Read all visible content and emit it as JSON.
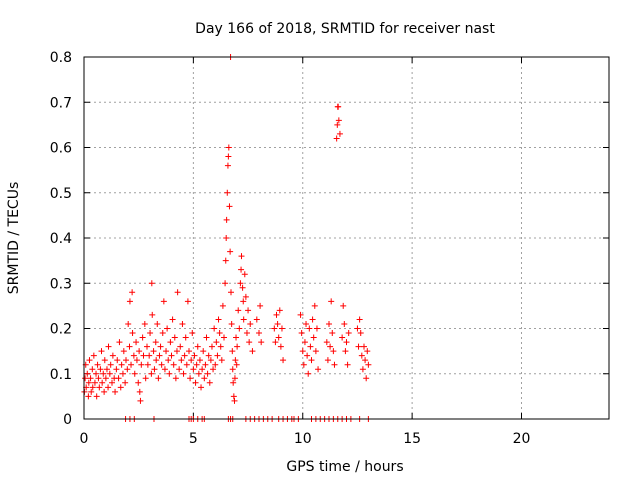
{
  "chart_data": {
    "type": "scatter",
    "title": "Day 166 of 2018, SRMTID for receiver nast",
    "xlabel": "GPS time / hours",
    "ylabel": "SRMTID / TECUs",
    "xlim": [
      0,
      24
    ],
    "ylim": [
      0,
      0.8
    ],
    "xticks": [
      0,
      5,
      10,
      15,
      20
    ],
    "yticks": [
      0,
      0.1,
      0.2,
      0.3,
      0.4,
      0.5,
      0.6,
      0.7,
      0.8
    ],
    "grid": true,
    "marker": "+",
    "color": "#ff0000",
    "series": [
      {
        "name": "SRMTID",
        "points": [
          [
            0.02,
            0.06
          ],
          [
            0.05,
            0.09
          ],
          [
            0.08,
            0.12
          ],
          [
            0.1,
            0.07
          ],
          [
            0.15,
            0.1
          ],
          [
            0.2,
            0.05
          ],
          [
            0.22,
            0.08
          ],
          [
            0.25,
            0.13
          ],
          [
            0.3,
            0.09
          ],
          [
            0.33,
            0.06
          ],
          [
            0.38,
            0.11
          ],
          [
            0.4,
            0.07
          ],
          [
            0.45,
            0.14
          ],
          [
            0.5,
            0.08
          ],
          [
            0.55,
            0.1
          ],
          [
            0.58,
            0.05
          ],
          [
            0.62,
            0.12
          ],
          [
            0.66,
            0.09
          ],
          [
            0.7,
            0.07
          ],
          [
            0.75,
            0.11
          ],
          [
            0.8,
            0.15
          ],
          [
            0.83,
            0.08
          ],
          [
            0.88,
            0.1
          ],
          [
            0.92,
            0.06
          ],
          [
            0.95,
            0.13
          ],
          [
            1.0,
            0.09
          ],
          [
            1.05,
            0.11
          ],
          [
            1.1,
            0.07
          ],
          [
            1.12,
            0.16
          ],
          [
            1.18,
            0.1
          ],
          [
            1.22,
            0.12
          ],
          [
            1.28,
            0.08
          ],
          [
            1.32,
            0.14
          ],
          [
            1.38,
            0.09
          ],
          [
            1.42,
            0.06
          ],
          [
            1.48,
            0.11
          ],
          [
            1.52,
            0.13
          ],
          [
            1.58,
            0.09
          ],
          [
            1.62,
            0.17
          ],
          [
            1.68,
            0.07
          ],
          [
            1.72,
            0.12
          ],
          [
            1.78,
            0.1
          ],
          [
            1.82,
            0.15
          ],
          [
            1.88,
            0.08
          ],
          [
            1.92,
            0.13
          ],
          [
            1.98,
            0.11
          ],
          [
            2.02,
            0.21
          ],
          [
            2.08,
            0.16
          ],
          [
            2.1,
            0.26
          ],
          [
            2.15,
            0.12
          ],
          [
            2.2,
            0.28
          ],
          [
            2.22,
            0.19
          ],
          [
            2.28,
            0.14
          ],
          [
            2.32,
            0.1
          ],
          [
            2.38,
            0.17
          ],
          [
            2.42,
            0.13
          ],
          [
            2.48,
            0.08
          ],
          [
            2.52,
            0.15
          ],
          [
            2.55,
            0.06
          ],
          [
            2.58,
            0.04
          ],
          [
            2.62,
            0.12
          ],
          [
            2.68,
            0.18
          ],
          [
            2.72,
            0.14
          ],
          [
            2.78,
            0.21
          ],
          [
            2.82,
            0.09
          ],
          [
            2.88,
            0.16
          ],
          [
            2.92,
            0.12
          ],
          [
            2.98,
            0.14
          ],
          [
            3.02,
            0.19
          ],
          [
            3.08,
            0.1
          ],
          [
            3.1,
            0.3
          ],
          [
            3.12,
            0.23
          ],
          [
            3.18,
            0.15
          ],
          [
            3.22,
            0.11
          ],
          [
            3.28,
            0.17
          ],
          [
            3.3,
            0.13
          ],
          [
            3.35,
            0.21
          ],
          [
            3.4,
            0.09
          ],
          [
            3.45,
            0.14
          ],
          [
            3.5,
            0.16
          ],
          [
            3.55,
            0.12
          ],
          [
            3.6,
            0.19
          ],
          [
            3.65,
            0.26
          ],
          [
            3.7,
            0.11
          ],
          [
            3.75,
            0.15
          ],
          [
            3.8,
            0.2
          ],
          [
            3.85,
            0.13
          ],
          [
            3.9,
            0.1
          ],
          [
            3.95,
            0.17
          ],
          [
            4.0,
            0.14
          ],
          [
            4.05,
            0.22
          ],
          [
            4.1,
            0.12
          ],
          [
            4.15,
            0.18
          ],
          [
            4.2,
            0.09
          ],
          [
            4.25,
            0.15
          ],
          [
            4.28,
            0.28
          ],
          [
            4.35,
            0.11
          ],
          [
            4.4,
            0.16
          ],
          [
            4.45,
            0.13
          ],
          [
            4.5,
            0.21
          ],
          [
            4.55,
            0.1
          ],
          [
            4.6,
            0.14
          ],
          [
            4.65,
            0.18
          ],
          [
            4.7,
            0.12
          ],
          [
            4.75,
            0.26
          ],
          [
            4.8,
            0.15
          ],
          [
            4.85,
            0.09
          ],
          [
            4.9,
            0.13
          ],
          [
            4.95,
            0.19
          ],
          [
            5.0,
            0.11
          ],
          [
            5.05,
            0.14
          ],
          [
            5.1,
            0.08
          ],
          [
            5.15,
            0.12
          ],
          [
            5.2,
            0.16
          ],
          [
            5.25,
            0.1
          ],
          [
            5.3,
            0.13
          ],
          [
            5.35,
            0.07
          ],
          [
            5.4,
            0.11
          ],
          [
            5.45,
            0.15
          ],
          [
            5.5,
            0.09
          ],
          [
            5.55,
            0.12
          ],
          [
            5.6,
            0.18
          ],
          [
            5.65,
            0.1
          ],
          [
            5.7,
            0.14
          ],
          [
            5.75,
            0.08
          ],
          [
            5.8,
            0.13
          ],
          [
            5.85,
            0.16
          ],
          [
            5.9,
            0.11
          ],
          [
            5.95,
            0.2
          ],
          [
            6.0,
            0.12
          ],
          [
            6.05,
            0.17
          ],
          [
            6.1,
            0.14
          ],
          [
            6.15,
            0.22
          ],
          [
            6.2,
            0.19
          ],
          [
            6.25,
            0.16
          ],
          [
            6.3,
            0.13
          ],
          [
            6.35,
            0.25
          ],
          [
            6.4,
            0.18
          ],
          [
            6.45,
            0.3
          ],
          [
            6.48,
            0.35
          ],
          [
            6.5,
            0.4
          ],
          [
            6.52,
            0.44
          ],
          [
            6.55,
            0.5
          ],
          [
            6.58,
            0.56
          ],
          [
            6.6,
            0.58
          ],
          [
            6.62,
            0.6
          ],
          [
            6.65,
            0.47
          ],
          [
            6.68,
            0.37
          ],
          [
            6.7,
            0.8
          ],
          [
            6.72,
            0.28
          ],
          [
            6.75,
            0.21
          ],
          [
            6.78,
            0.15
          ],
          [
            6.8,
            0.11
          ],
          [
            6.82,
            0.08
          ],
          [
            6.85,
            0.05
          ],
          [
            6.88,
            0.04
          ],
          [
            6.9,
            0.09
          ],
          [
            6.92,
            0.13
          ],
          [
            6.95,
            0.18
          ],
          [
            6.98,
            0.12
          ],
          [
            7.0,
            0.16
          ],
          [
            7.05,
            0.24
          ],
          [
            7.1,
            0.2
          ],
          [
            7.15,
            0.3
          ],
          [
            7.18,
            0.33
          ],
          [
            7.2,
            0.36
          ],
          [
            7.25,
            0.29
          ],
          [
            7.28,
            0.26
          ],
          [
            7.3,
            0.22
          ],
          [
            7.35,
            0.32
          ],
          [
            7.4,
            0.27
          ],
          [
            7.45,
            0.19
          ],
          [
            7.5,
            0.24
          ],
          [
            7.55,
            0.17
          ],
          [
            7.6,
            0.21
          ],
          [
            7.7,
            0.15
          ],
          [
            7.9,
            0.22
          ],
          [
            8.0,
            0.19
          ],
          [
            8.05,
            0.25
          ],
          [
            8.1,
            0.17
          ],
          [
            8.7,
            0.2
          ],
          [
            8.75,
            0.17
          ],
          [
            8.8,
            0.23
          ],
          [
            8.85,
            0.21
          ],
          [
            8.9,
            0.18
          ],
          [
            8.95,
            0.24
          ],
          [
            9.0,
            0.16
          ],
          [
            9.05,
            0.2
          ],
          [
            9.1,
            0.13
          ],
          [
            9.9,
            0.23
          ],
          [
            9.95,
            0.19
          ],
          [
            10.0,
            0.15
          ],
          [
            10.05,
            0.12
          ],
          [
            10.1,
            0.17
          ],
          [
            10.15,
            0.21
          ],
          [
            10.2,
            0.14
          ],
          [
            10.25,
            0.1
          ],
          [
            10.3,
            0.2
          ],
          [
            10.35,
            0.16
          ],
          [
            10.4,
            0.13
          ],
          [
            10.45,
            0.22
          ],
          [
            10.5,
            0.18
          ],
          [
            10.55,
            0.25
          ],
          [
            10.6,
            0.15
          ],
          [
            10.65,
            0.2
          ],
          [
            10.7,
            0.11
          ],
          [
            11.1,
            0.17
          ],
          [
            11.15,
            0.13
          ],
          [
            11.2,
            0.21
          ],
          [
            11.25,
            0.16
          ],
          [
            11.3,
            0.26
          ],
          [
            11.35,
            0.19
          ],
          [
            11.4,
            0.15
          ],
          [
            11.45,
            0.12
          ],
          [
            11.55,
            0.62
          ],
          [
            11.58,
            0.65
          ],
          [
            11.6,
            0.69
          ],
          [
            11.62,
            0.69
          ],
          [
            11.65,
            0.66
          ],
          [
            11.7,
            0.63
          ],
          [
            11.8,
            0.18
          ],
          [
            11.85,
            0.25
          ],
          [
            11.9,
            0.21
          ],
          [
            11.95,
            0.15
          ],
          [
            12.0,
            0.17
          ],
          [
            12.05,
            0.12
          ],
          [
            12.1,
            0.19
          ],
          [
            12.5,
            0.2
          ],
          [
            12.55,
            0.16
          ],
          [
            12.6,
            0.22
          ],
          [
            12.65,
            0.19
          ],
          [
            12.7,
            0.14
          ],
          [
            12.75,
            0.11
          ],
          [
            12.8,
            0.16
          ],
          [
            12.85,
            0.13
          ],
          [
            12.9,
            0.09
          ],
          [
            12.95,
            0.15
          ],
          [
            13.0,
            0.12
          ],
          [
            1.9,
            0.0
          ],
          [
            2.1,
            0.0
          ],
          [
            2.3,
            0.0
          ],
          [
            3.2,
            0.0
          ],
          [
            4.8,
            0.0
          ],
          [
            4.9,
            0.0
          ],
          [
            5.0,
            0.0
          ],
          [
            5.2,
            0.0
          ],
          [
            5.4,
            0.0
          ],
          [
            5.5,
            0.0
          ],
          [
            6.6,
            0.0
          ],
          [
            6.7,
            0.0
          ],
          [
            6.8,
            0.0
          ],
          [
            7.4,
            0.0
          ],
          [
            7.6,
            0.0
          ],
          [
            7.8,
            0.0
          ],
          [
            8.0,
            0.0
          ],
          [
            8.2,
            0.0
          ],
          [
            8.4,
            0.0
          ],
          [
            8.6,
            0.0
          ],
          [
            8.9,
            0.0
          ],
          [
            9.1,
            0.0
          ],
          [
            9.3,
            0.0
          ],
          [
            9.5,
            0.0
          ],
          [
            9.6,
            0.0
          ],
          [
            9.8,
            0.0
          ],
          [
            10.4,
            0.0
          ],
          [
            10.6,
            0.0
          ],
          [
            10.8,
            0.0
          ],
          [
            11.0,
            0.0
          ],
          [
            11.2,
            0.0
          ],
          [
            11.4,
            0.0
          ],
          [
            11.6,
            0.0
          ],
          [
            11.8,
            0.0
          ],
          [
            12.0,
            0.0
          ],
          [
            12.2,
            0.0
          ],
          [
            12.6,
            0.0
          ],
          [
            13.0,
            0.0
          ]
        ]
      }
    ]
  }
}
